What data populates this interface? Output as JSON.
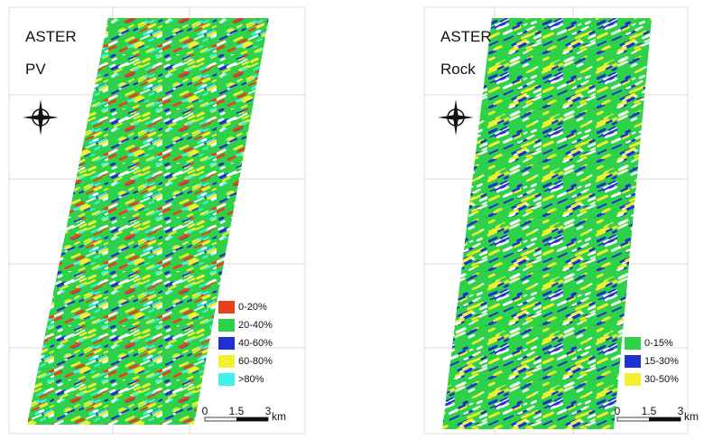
{
  "panels": [
    {
      "sensor": "ASTER",
      "variable": "PV",
      "legend": [
        {
          "label": "0-20%",
          "color": "#e8401c"
        },
        {
          "label": "20-40%",
          "color": "#2ed14a"
        },
        {
          "label": "40-60%",
          "color": "#1f2fd0"
        },
        {
          "label": "60-80%",
          "color": "#f2f030"
        },
        {
          "label": ">80%",
          "color": "#3ff2ee"
        }
      ],
      "scale": {
        "ticks": [
          "0",
          "1.5",
          "3"
        ],
        "unit": "km"
      }
    },
    {
      "sensor": "ASTER",
      "variable": "Rock",
      "legend": [
        {
          "label": "0-15%",
          "color": "#2ed14a"
        },
        {
          "label": "15-30%",
          "color": "#1f2fd0"
        },
        {
          "label": "30-50%",
          "color": "#f2f030"
        }
      ],
      "scale": {
        "ticks": [
          "0",
          "1.5",
          "3"
        ],
        "unit": "km"
      }
    }
  ]
}
